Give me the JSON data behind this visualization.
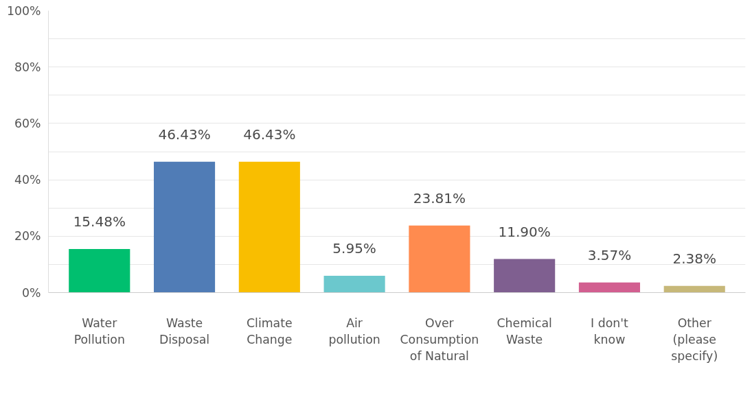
{
  "chart_data": {
    "type": "bar",
    "categories": [
      "Water Pollution",
      "Waste Disposal",
      "Climate Change",
      "Air pollution",
      "Over Consumption of Natural",
      "Chemical Waste",
      "I don't know",
      "Other (please specify)"
    ],
    "values": [
      15.48,
      46.43,
      46.43,
      5.95,
      23.81,
      11.9,
      3.57,
      2.38
    ],
    "colors": [
      "#00bf6f",
      "#507cb6",
      "#f9be00",
      "#6bc8cd",
      "#ff8b4f",
      "#7f5f90",
      "#d25f90",
      "#c7b879"
    ],
    "value_labels": [
      "15.48%",
      "46.43%",
      "46.43%",
      "5.95%",
      "23.81%",
      "11.90%",
      "3.57%",
      "2.38%"
    ],
    "ylim": [
      0,
      100
    ],
    "yticks": [
      {
        "value": 0,
        "label": "0%"
      },
      {
        "value": 10,
        "label": null
      },
      {
        "value": 20,
        "label": "20%"
      },
      {
        "value": 30,
        "label": null
      },
      {
        "value": 40,
        "label": "40%"
      },
      {
        "value": 50,
        "label": null
      },
      {
        "value": 60,
        "label": "60%"
      },
      {
        "value": 70,
        "label": null
      },
      {
        "value": 80,
        "label": "80%"
      },
      {
        "value": 90,
        "label": null
      },
      {
        "value": 100,
        "label": "100%"
      }
    ],
    "grid": "y"
  }
}
